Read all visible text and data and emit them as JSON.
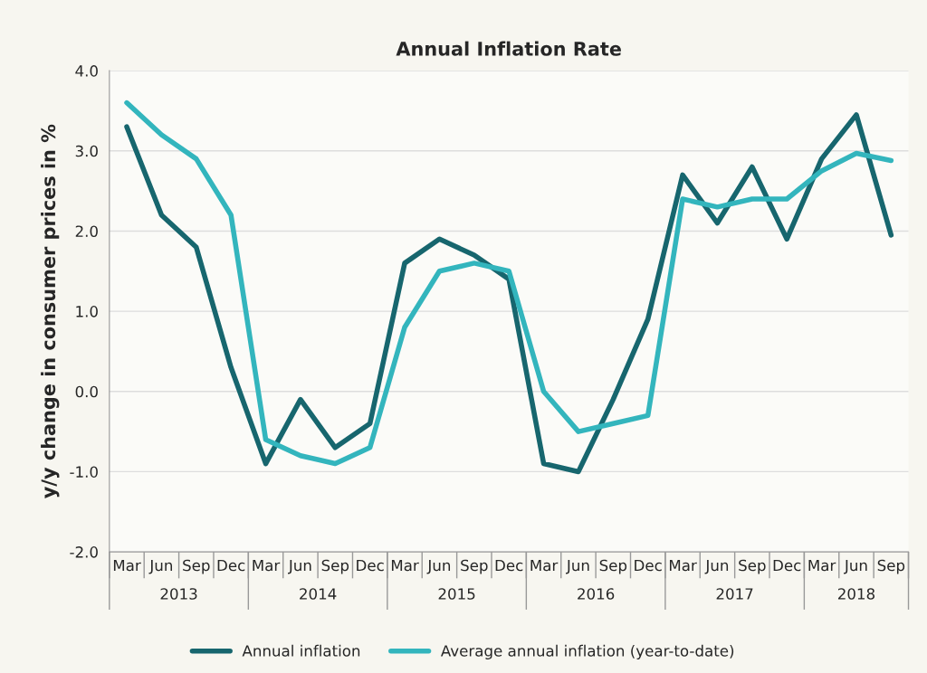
{
  "chart_data": {
    "type": "line",
    "title": "Annual Inflation Rate",
    "ylabel": "y/y change in consumer prices in %",
    "categories": [
      "Mar",
      "Jun",
      "Sep",
      "Dec",
      "Mar",
      "Jun",
      "Sep",
      "Dec",
      "Mar",
      "Jun",
      "Sep",
      "Dec",
      "Mar",
      "Jun",
      "Sep",
      "Dec",
      "Mar",
      "Jun",
      "Sep",
      "Dec",
      "Mar",
      "Jun",
      "Sep"
    ],
    "series": [
      {
        "name": "Annual inflation",
        "color": "#17666e",
        "values": [
          3.3,
          2.2,
          1.8,
          0.3,
          -0.9,
          -0.1,
          -0.7,
          -0.4,
          1.6,
          1.9,
          1.7,
          1.4,
          -0.9,
          -1.0,
          -0.1,
          0.9,
          2.7,
          2.1,
          2.8,
          1.9,
          2.9,
          3.45,
          1.95
        ]
      },
      {
        "name": "Average annual inflation (year-to-date)",
        "color": "#33b5bd",
        "values": [
          3.6,
          3.2,
          2.9,
          2.2,
          -0.6,
          -0.8,
          -0.9,
          -0.7,
          0.8,
          1.5,
          1.6,
          1.5,
          0.0,
          -0.5,
          -0.4,
          -0.3,
          2.4,
          2.3,
          2.4,
          2.4,
          2.75,
          2.97,
          2.88
        ]
      }
    ],
    "annotations": [
      "2013",
      "2014",
      "2015",
      "2016",
      "2017",
      "2018"
    ],
    "ylim": [
      -2,
      4
    ],
    "yticks": [
      {
        "value": -2,
        "label": "-2.0"
      },
      {
        "value": -1,
        "label": "-1.0"
      },
      {
        "value": 0,
        "label": "0.0"
      },
      {
        "value": 1,
        "label": "1.0"
      },
      {
        "value": 2,
        "label": "2.0"
      },
      {
        "value": 3,
        "label": "3.0"
      },
      {
        "value": 4,
        "label": "4.0"
      }
    ],
    "grid": "y",
    "legend": "bottom",
    "line_style": "solid",
    "marker": "none"
  }
}
